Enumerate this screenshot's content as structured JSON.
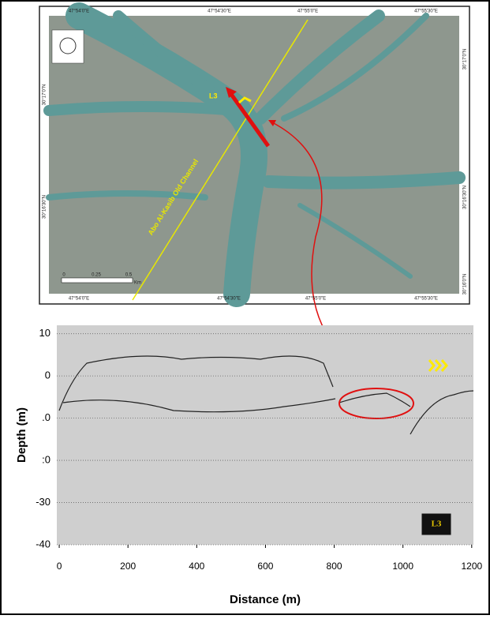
{
  "map": {
    "top_labels": [
      "47°54'0\"E",
      "47°54'30\"E",
      "47°55'0\"E",
      "47°55'30\"E"
    ],
    "bottom_labels": [
      "47°54'0\"E",
      "47°54'30\"E",
      "47°55'0\"E",
      "47°55'30\"E"
    ],
    "left_labels": [
      "30°17'0\"N",
      "30°16'30\"N"
    ],
    "right_labels": [
      "30°17'0\"N",
      "30°16'30\"N",
      "30°16'0\"N"
    ],
    "line_label": "L3",
    "channel_label": "Abo Al-Kasib Old Channel",
    "scale": {
      "ticks": [
        "0",
        "0.25",
        "0.5"
      ],
      "unit": "Km"
    }
  },
  "profile": {
    "y_label": "Depth (m)",
    "x_label": "Distance (m)",
    "xlim": [
      -7,
      1205
    ],
    "ylim": [
      -40,
      12
    ],
    "xticks": [
      0,
      200,
      400,
      600,
      800,
      1000,
      1200
    ],
    "yticks": [
      10,
      0,
      {
        "value": -10,
        "label": ".0"
      },
      {
        "value": -20,
        "label": ":0"
      },
      -30,
      -40
    ],
    "line_label": "L3"
  }
}
